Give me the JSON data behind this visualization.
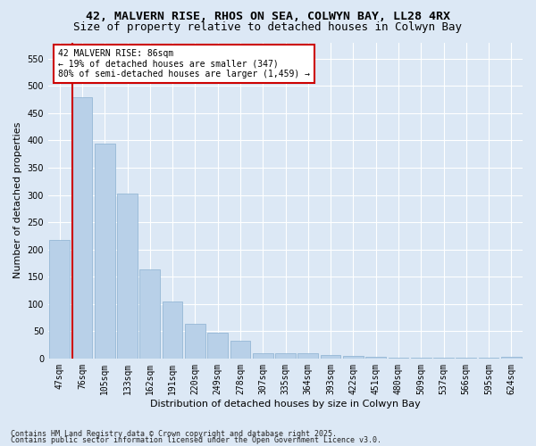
{
  "title1": "42, MALVERN RISE, RHOS ON SEA, COLWYN BAY, LL28 4RX",
  "title2": "Size of property relative to detached houses in Colwyn Bay",
  "xlabel": "Distribution of detached houses by size in Colwyn Bay",
  "ylabel": "Number of detached properties",
  "categories": [
    "47sqm",
    "76sqm",
    "105sqm",
    "133sqm",
    "162sqm",
    "191sqm",
    "220sqm",
    "249sqm",
    "278sqm",
    "307sqm",
    "335sqm",
    "364sqm",
    "393sqm",
    "422sqm",
    "451sqm",
    "480sqm",
    "509sqm",
    "537sqm",
    "566sqm",
    "595sqm",
    "624sqm"
  ],
  "values": [
    218,
    480,
    395,
    303,
    163,
    104,
    64,
    47,
    32,
    9,
    10,
    10,
    7,
    4,
    3,
    2,
    2,
    1,
    1,
    1,
    3
  ],
  "bar_color": "#b8d0e8",
  "bar_edgecolor": "#8ab0d0",
  "bg_color": "#dce8f5",
  "grid_color": "#ffffff",
  "vline_color": "#cc0000",
  "annotation_text": "42 MALVERN RISE: 86sqm\n← 19% of detached houses are smaller (347)\n80% of semi-detached houses are larger (1,459) →",
  "annotation_box_facecolor": "#ffffff",
  "annotation_box_edgecolor": "#cc0000",
  "ylim": [
    0,
    580
  ],
  "yticks": [
    0,
    50,
    100,
    150,
    200,
    250,
    300,
    350,
    400,
    450,
    500,
    550
  ],
  "footer1": "Contains HM Land Registry data © Crown copyright and database right 2025.",
  "footer2": "Contains public sector information licensed under the Open Government Licence v3.0.",
  "title1_fontsize": 9.5,
  "title2_fontsize": 9,
  "axis_label_fontsize": 8,
  "tick_fontsize": 7,
  "footer_fontsize": 6
}
